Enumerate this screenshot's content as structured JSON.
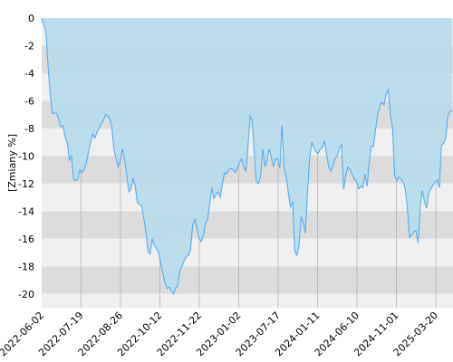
{
  "chart_data": {
    "type": "area",
    "ylabel": "[Zmiany %]",
    "ylim": [
      -21,
      0
    ],
    "y_ticks": [
      0,
      -2,
      -4,
      -6,
      -8,
      -10,
      -12,
      -14,
      -16,
      -18,
      -20
    ],
    "x_tick_labels": [
      "2022-06-02",
      "2022-07-19",
      "2022-08-26",
      "2022-10-12",
      "2022-11-22",
      "2023-01-02",
      "2023-07-17",
      "2024-01-11",
      "2024-06-10",
      "2024-11-01",
      "2025-03-20"
    ],
    "grid": true,
    "colors": {
      "fill": "#b7dcec",
      "line": "#5aaef0",
      "band_dark": "#dcdcdc",
      "band_light": "#efefef",
      "vgrid": "#b4b4b4"
    },
    "values": [
      0,
      -0.5,
      -1,
      -3.5,
      -5.5,
      -6.9,
      -6.9,
      -6.9,
      -7.3,
      -7.9,
      -7.8,
      -8.6,
      -9,
      -10.3,
      -10,
      -11.7,
      -11.8,
      -11.7,
      -11,
      -11.2,
      -11,
      -10.5,
      -9.7,
      -9,
      -8.4,
      -8.7,
      -8.3,
      -8,
      -7.7,
      -7.4,
      -7,
      -7.1,
      -7.3,
      -7.9,
      -9.5,
      -10.2,
      -10.8,
      -10.3,
      -9.5,
      -10.3,
      -11.4,
      -12.6,
      -12.4,
      -11.6,
      -12.2,
      -13.4,
      -13.5,
      -13.6,
      -14.5,
      -15.5,
      -16.9,
      -17.1,
      -16,
      -16.5,
      -16.7,
      -17,
      -17.8,
      -18.5,
      -19.2,
      -19.6,
      -19.5,
      -19.8,
      -20,
      -19.6,
      -19.4,
      -18.3,
      -18,
      -17.6,
      -17.3,
      -17.2,
      -16.8,
      -15,
      -14.6,
      -15.2,
      -16,
      -16.2,
      -15.8,
      -14.9,
      -14.6,
      -13.5,
      -12.3,
      -13.1,
      -12.8,
      -12.6,
      -13,
      -12,
      -11.2,
      -11.3,
      -11,
      -10.9,
      -11,
      -11.2,
      -10.9,
      -10.5,
      -10.2,
      -10.8,
      -11.1,
      -9.4,
      -7.1,
      -7.4,
      -9.8,
      -11.9,
      -12,
      -11.4,
      -9.5,
      -10.8,
      -10.3,
      -9.5,
      -10.1,
      -10.8,
      -10.2,
      -10.2,
      -10.9,
      -7.8,
      -10.9,
      -11.5,
      -12.7,
      -13.7,
      -13.3,
      -16.9,
      -17.2,
      -16.5,
      -14.4,
      -14.8,
      -15.6,
      -12.6,
      -10.2,
      -9,
      -9.4,
      -9.7,
      -9.8,
      -9.5,
      -9.4,
      -8.9,
      -9.9,
      -10.8,
      -11.1,
      -10.7,
      -10.2,
      -10,
      -9.4,
      -9.2,
      -12.4,
      -11.4,
      -10.8,
      -11,
      -11.3,
      -11.7,
      -11.8,
      -12.4,
      -12.2,
      -12.3,
      -11.3,
      -12.2,
      -10.5,
      -9.3,
      -9.3,
      -8.1,
      -7,
      -6.4,
      -6.1,
      -6.3,
      -5.5,
      -5.2,
      -7,
      -8,
      -11.4,
      -11.8,
      -11.5,
      -11.7,
      -11.9,
      -12.4,
      -13.8,
      -15.9,
      -15.7,
      -15.5,
      -15.4,
      -16.3,
      -13.7,
      -12.5,
      -13.3,
      -13.8,
      -12.7,
      -12.4,
      -12.1,
      -11.9,
      -11.7,
      -12.3,
      -9.2,
      -9.1,
      -8.7,
      -7.1,
      -6.8,
      -6.7
    ]
  }
}
